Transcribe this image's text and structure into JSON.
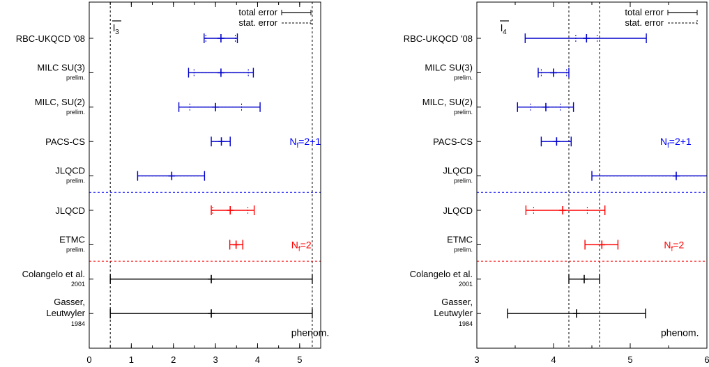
{
  "chart_data": [
    {
      "type": "forest",
      "xlabel": "",
      "ylabel": "",
      "xlim": [
        0,
        5.5
      ],
      "xticks": [
        0,
        1,
        2,
        3,
        4,
        5
      ],
      "symbol": "l",
      "subscript": "3",
      "legend": {
        "position": "top-right",
        "total": "total error",
        "stat": "stat. error"
      },
      "rows": [
        {
          "label": "RBC-UKQCD '08",
          "sub": "",
          "color": "#0000cc",
          "value": 3.13,
          "total": [
            2.73,
            3.52
          ],
          "stat": [
            2.77,
            3.47
          ]
        },
        {
          "label": "MILC SU(3)",
          "sub": "prelim.",
          "color": "#0000cc",
          "value": 3.13,
          "total": [
            2.36,
            3.9
          ],
          "stat": [
            2.49,
            3.78
          ]
        },
        {
          "label": "MILC, SU(2)",
          "sub": "prelim.",
          "color": "#0000cc",
          "value": 3.0,
          "total": [
            2.13,
            4.06
          ],
          "stat": [
            2.39,
            3.62
          ]
        },
        {
          "label": "PACS-CS",
          "sub": "",
          "color": "#0000cc",
          "value": 3.14,
          "total": [
            2.9,
            3.35
          ],
          "stat": [
            2.9,
            3.35
          ]
        },
        {
          "label": "JLQCD",
          "sub": "prelim.",
          "color": "#0000cc",
          "value": 1.96,
          "total": [
            1.15,
            2.74
          ],
          "stat": [
            1.15,
            2.74
          ]
        },
        {
          "label": "JLQCD",
          "sub": "",
          "color": "#ff0000",
          "value": 3.35,
          "total": [
            2.9,
            3.92
          ],
          "stat": [
            2.93,
            3.77
          ]
        },
        {
          "label": "ETMC",
          "sub": "prelim.",
          "color": "#ff0000",
          "value": 3.49,
          "total": [
            3.34,
            3.65
          ],
          "stat": [
            3.34,
            3.65
          ]
        },
        {
          "label": "Colangelo et al.",
          "sub": "2001",
          "color": "#000000",
          "value": 2.9,
          "total": [
            0.5,
            5.3
          ],
          "stat": null
        },
        {
          "label": "Gasser,",
          "label2": "Leutwyler",
          "sub": "1984",
          "color": "#000000",
          "value": 2.9,
          "total": [
            0.5,
            5.3
          ],
          "stat": null
        }
      ],
      "vlines": [
        0.5,
        5.3
      ],
      "hsep": [
        {
          "after_row": 4,
          "color": "#0000ff"
        },
        {
          "after_row": 6,
          "color": "#ff0000"
        }
      ],
      "annotations": [
        {
          "text": "N",
          "subtext": "f",
          "suffix": "=2+1",
          "row": 3,
          "x": 4.76,
          "color": "#0000ff"
        },
        {
          "text": "N",
          "subtext": "f",
          "suffix": "=2",
          "row": 6,
          "x": 4.8,
          "color": "#ff0000"
        },
        {
          "text": "phenom.",
          "row": 8.55,
          "x": 4.8,
          "color": "#000000"
        }
      ]
    },
    {
      "type": "forest",
      "xlabel": "",
      "ylabel": "",
      "xlim": [
        3,
        6
      ],
      "xticks": [
        3,
        4,
        5,
        6
      ],
      "symbol": "l",
      "subscript": "4",
      "legend": {
        "position": "top-right",
        "total": "total error",
        "stat": "stat. error"
      },
      "rows": [
        {
          "label": "RBC-UKQCD '08",
          "sub": "",
          "color": "#0000cc",
          "value": 4.43,
          "total": [
            3.63,
            5.21
          ],
          "stat": [
            4.29,
            4.57
          ]
        },
        {
          "label": "MILC SU(3)",
          "sub": "prelim.",
          "color": "#0000cc",
          "value": 4.0,
          "total": [
            3.8,
            4.2
          ],
          "stat": [
            3.84,
            4.17
          ]
        },
        {
          "label": "MILC, SU(2)",
          "sub": "prelim.",
          "color": "#0000cc",
          "value": 3.9,
          "total": [
            3.53,
            4.26
          ],
          "stat": [
            3.7,
            4.09
          ]
        },
        {
          "label": "PACS-CS",
          "sub": "",
          "color": "#0000cc",
          "value": 4.04,
          "total": [
            3.84,
            4.23
          ],
          "stat": [
            3.84,
            4.23
          ]
        },
        {
          "label": "JLQCD",
          "sub": "prelim.",
          "color": "#0000cc",
          "value": 5.6,
          "total": [
            4.5,
            6.05
          ],
          "stat": [
            4.5,
            6.05
          ]
        },
        {
          "label": "JLQCD",
          "sub": "",
          "color": "#ff0000",
          "value": 4.12,
          "total": [
            3.64,
            4.67
          ],
          "stat": [
            3.74,
            4.44
          ]
        },
        {
          "label": "ETMC",
          "sub": "prelim.",
          "color": "#ff0000",
          "value": 4.63,
          "total": [
            4.41,
            4.84
          ],
          "stat": [
            4.41,
            4.84
          ]
        },
        {
          "label": "Colangelo et al.",
          "sub": "2001",
          "color": "#000000",
          "value": 4.4,
          "total": [
            4.2,
            4.6
          ],
          "stat": null
        },
        {
          "label": "Gasser,",
          "label2": "Leutwyler",
          "sub": "1984",
          "color": "#000000",
          "value": 4.3,
          "total": [
            3.4,
            5.2
          ],
          "stat": null
        }
      ],
      "vlines": [
        4.2,
        4.6
      ],
      "hsep": [
        {
          "after_row": 4,
          "color": "#0000ff"
        },
        {
          "after_row": 6,
          "color": "#ff0000"
        }
      ],
      "annotations": [
        {
          "text": "N",
          "subtext": "f",
          "suffix": "=2+1",
          "row": 3,
          "x": 5.39,
          "color": "#0000ff"
        },
        {
          "text": "N",
          "subtext": "f",
          "suffix": "=2",
          "row": 6,
          "x": 5.44,
          "color": "#ff0000"
        },
        {
          "text": "phenom.",
          "row": 8.55,
          "x": 5.4,
          "color": "#000000"
        }
      ]
    }
  ]
}
